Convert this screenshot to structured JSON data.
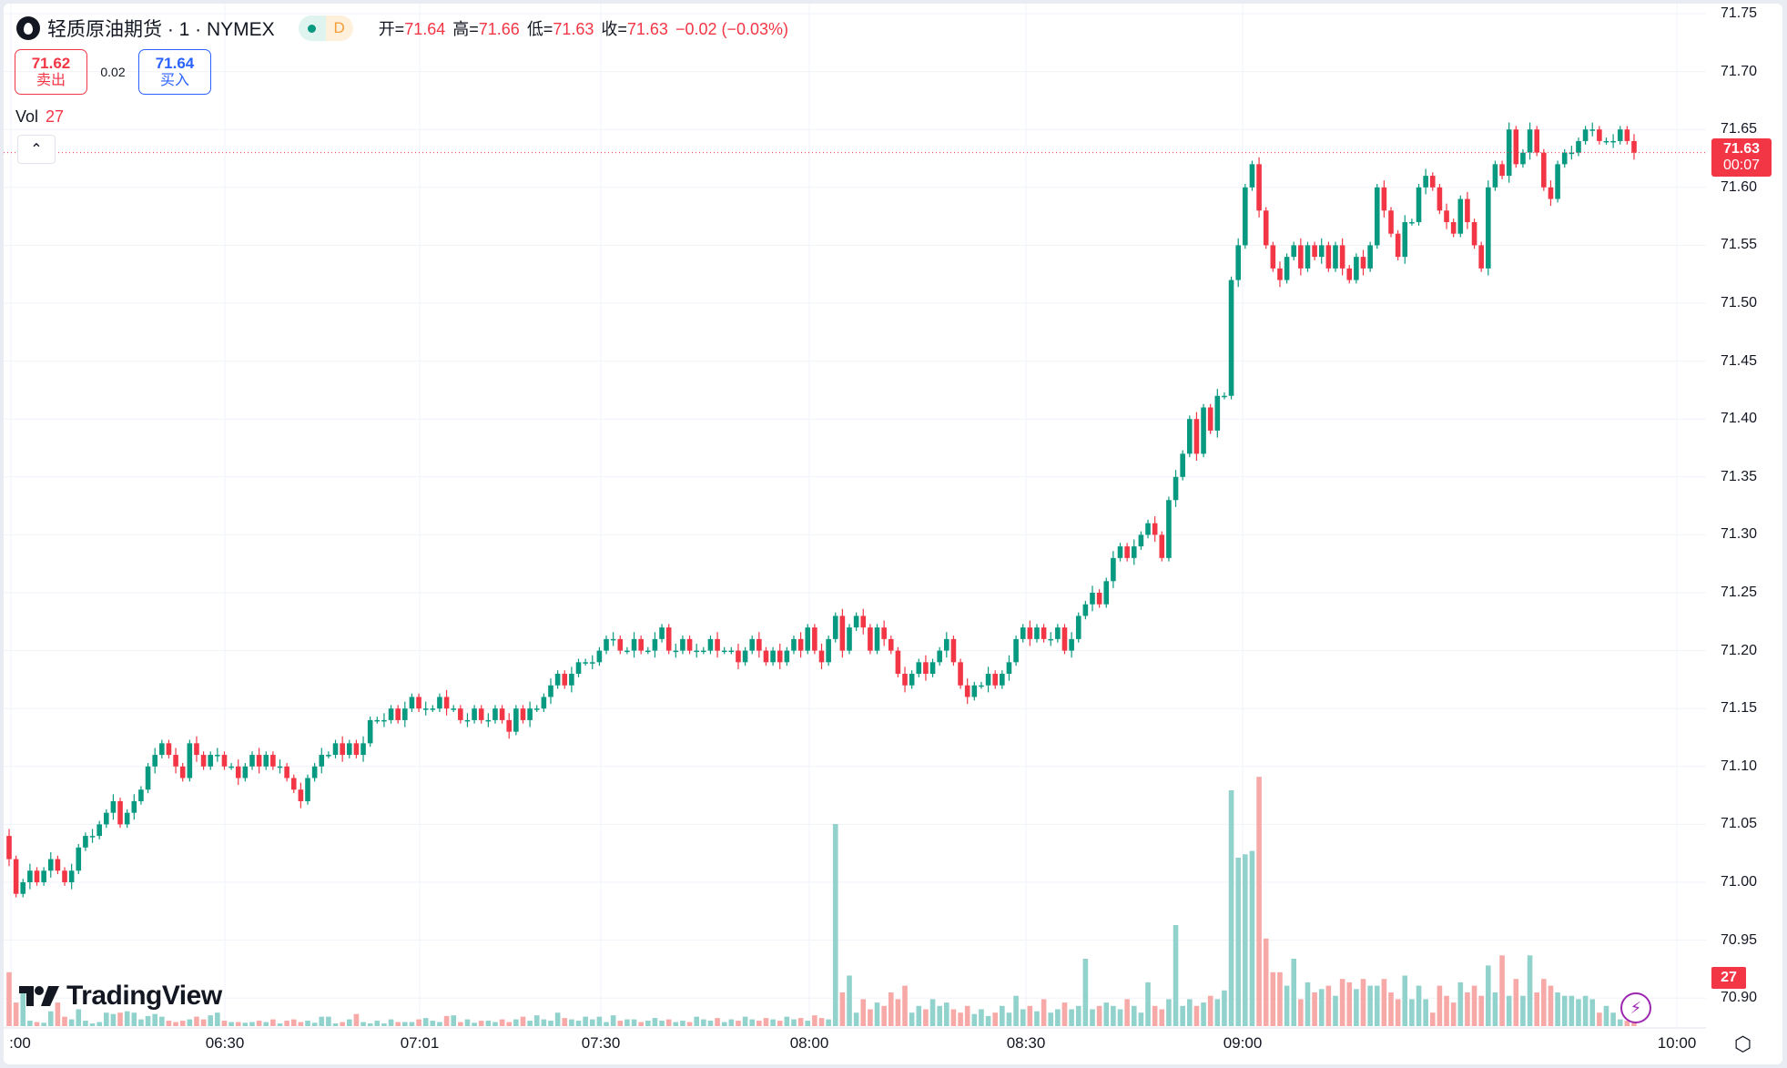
{
  "header": {
    "symbol_title": "轻质原油期货 · 1 · NYMEX",
    "status_badge": "D",
    "ohlc": {
      "open_label": "开=",
      "open": "71.64",
      "high_label": "高=",
      "high": "71.66",
      "low_label": "低=",
      "low": "71.63",
      "close_label": "收=",
      "close": "71.63",
      "change": "−0.02 (−0.03%)"
    }
  },
  "trade": {
    "sell_price": "71.62",
    "sell_label": "卖出",
    "spread": "0.02",
    "buy_price": "71.64",
    "buy_label": "买入"
  },
  "volume_legend": {
    "label": "Vol",
    "value": "27"
  },
  "logo": "TradingView",
  "current_price": {
    "price": "71.63",
    "countdown": "00:07"
  },
  "current_volume": "27",
  "colors": {
    "up": "#089981",
    "down": "#f23645",
    "volume_up": "#92d2cc",
    "volume_down": "#f7a9a7",
    "accent": "#2962ff"
  },
  "icons": {
    "symbol": "oil-drop-icon",
    "collapse": "chevron-up-icon",
    "alert": "lightning-icon",
    "settings": "settings-hexagon-icon"
  },
  "chart_data": {
    "type": "candlestick",
    "interval": "1",
    "x_ticks": [
      ":00",
      "06:30",
      "07:01",
      "07:30",
      "08:00",
      "08:30",
      "09:00",
      "10:00"
    ],
    "y_ticks": [
      "71.75",
      "71.70",
      "71.65",
      "71.60",
      "71.55",
      "71.50",
      "71.45",
      "71.40",
      "71.35",
      "71.30",
      "71.25",
      "71.20",
      "71.15",
      "71.10",
      "71.05",
      "71.00",
      "70.95",
      "70.90"
    ],
    "ylim": [
      70.9,
      71.75
    ],
    "grid": true,
    "close": [
      71.02,
      70.99,
      71.0,
      71.01,
      71.0,
      71.01,
      71.02,
      71.01,
      71.0,
      71.01,
      71.03,
      71.04,
      71.04,
      71.05,
      71.06,
      71.07,
      71.05,
      71.06,
      71.07,
      71.08,
      71.1,
      71.11,
      71.12,
      71.11,
      71.1,
      71.09,
      71.12,
      71.11,
      71.1,
      71.11,
      71.11,
      71.1,
      71.1,
      71.09,
      71.1,
      71.11,
      71.1,
      71.11,
      71.1,
      71.1,
      71.09,
      71.08,
      71.07,
      71.09,
      71.1,
      71.11,
      71.11,
      71.12,
      71.11,
      71.12,
      71.11,
      71.12,
      71.14,
      71.14,
      71.14,
      71.15,
      71.14,
      71.15,
      71.16,
      71.15,
      71.15,
      71.15,
      71.16,
      71.15,
      71.15,
      71.14,
      71.14,
      71.15,
      71.14,
      71.14,
      71.15,
      71.14,
      71.13,
      71.15,
      71.14,
      71.15,
      71.15,
      71.16,
      71.17,
      71.18,
      71.17,
      71.18,
      71.19,
      71.19,
      71.19,
      71.2,
      71.21,
      71.21,
      71.2,
      71.2,
      71.21,
      71.2,
      71.2,
      71.21,
      71.22,
      71.2,
      71.2,
      71.21,
      71.2,
      71.2,
      71.2,
      71.21,
      71.2,
      71.2,
      71.2,
      71.19,
      71.2,
      71.21,
      71.2,
      71.19,
      71.2,
      71.19,
      71.2,
      71.21,
      71.2,
      71.22,
      71.2,
      71.19,
      71.21,
      71.23,
      71.2,
      71.22,
      71.23,
      71.22,
      71.2,
      71.22,
      71.21,
      71.2,
      71.18,
      71.17,
      71.18,
      71.19,
      71.18,
      71.19,
      71.2,
      71.21,
      71.19,
      71.17,
      71.16,
      71.17,
      71.17,
      71.18,
      71.17,
      71.18,
      71.19,
      71.21,
      71.22,
      71.21,
      71.22,
      71.21,
      71.21,
      71.22,
      71.2,
      71.21,
      71.23,
      71.24,
      71.25,
      71.24,
      71.26,
      71.28,
      71.29,
      71.28,
      71.29,
      71.3,
      71.31,
      71.3,
      71.28,
      71.33,
      71.35,
      71.37,
      71.4,
      71.37,
      71.41,
      71.39,
      71.42,
      71.42,
      71.52,
      71.55,
      71.6,
      71.62,
      71.58,
      71.55,
      71.53,
      71.52,
      71.54,
      71.55,
      71.53,
      71.55,
      71.54,
      71.55,
      71.53,
      71.55,
      71.53,
      71.52,
      71.54,
      71.53,
      71.55,
      71.6,
      71.58,
      71.56,
      71.54,
      71.57,
      71.57,
      71.6,
      71.61,
      71.6,
      71.58,
      71.57,
      71.56,
      71.59,
      71.57,
      71.55,
      71.53,
      71.6,
      71.62,
      71.61,
      71.65,
      71.62,
      71.63,
      71.65,
      71.63,
      71.6,
      71.59,
      71.62,
      71.63,
      71.63,
      71.64,
      71.65,
      71.65,
      71.64,
      71.64,
      71.64,
      71.65,
      71.64,
      71.63
    ],
    "volume": [
      80,
      35,
      50,
      8,
      6,
      5,
      22,
      35,
      14,
      10,
      25,
      8,
      4,
      6,
      20,
      18,
      20,
      22,
      20,
      10,
      15,
      18,
      14,
      8,
      6,
      8,
      10,
      14,
      10,
      16,
      20,
      8,
      6,
      6,
      5,
      6,
      8,
      6,
      10,
      4,
      8,
      10,
      6,
      8,
      5,
      14,
      14,
      4,
      6,
      10,
      18,
      6,
      4,
      8,
      4,
      10,
      6,
      6,
      6,
      10,
      12,
      8,
      6,
      15,
      16,
      6,
      10,
      5,
      8,
      8,
      6,
      10,
      6,
      10,
      14,
      8,
      16,
      10,
      8,
      20,
      12,
      10,
      8,
      14,
      10,
      14,
      6,
      16,
      8,
      10,
      10,
      6,
      8,
      12,
      8,
      10,
      6,
      8,
      6,
      14,
      10,
      8,
      12,
      6,
      10,
      8,
      14,
      10,
      8,
      12,
      10,
      8,
      14,
      10,
      12,
      8,
      16,
      12,
      10,
      300,
      50,
      75,
      20,
      40,
      25,
      35,
      30,
      50,
      40,
      60,
      20,
      30,
      25,
      40,
      30,
      35,
      25,
      20,
      30,
      18,
      25,
      15,
      20,
      30,
      20,
      45,
      25,
      30,
      22,
      40,
      20,
      25,
      35,
      25,
      30,
      100,
      25,
      30,
      35,
      30,
      25,
      40,
      30,
      20,
      65,
      30,
      25,
      40,
      150,
      30,
      40,
      30,
      35,
      45,
      40,
      53,
      350,
      250,
      255,
      260,
      370,
      130,
      80,
      80,
      60,
      100,
      40,
      65,
      50,
      55,
      60,
      45,
      70,
      65,
      55,
      70,
      60,
      60,
      70,
      50,
      40,
      75,
      40,
      60,
      40,
      20,
      60,
      45,
      35,
      65,
      50,
      60,
      45,
      90,
      50,
      105,
      45,
      70,
      45,
      105,
      50,
      70,
      60,
      50,
      45,
      45,
      40,
      45,
      40,
      20,
      30,
      20,
      10,
      8,
      27
    ]
  }
}
